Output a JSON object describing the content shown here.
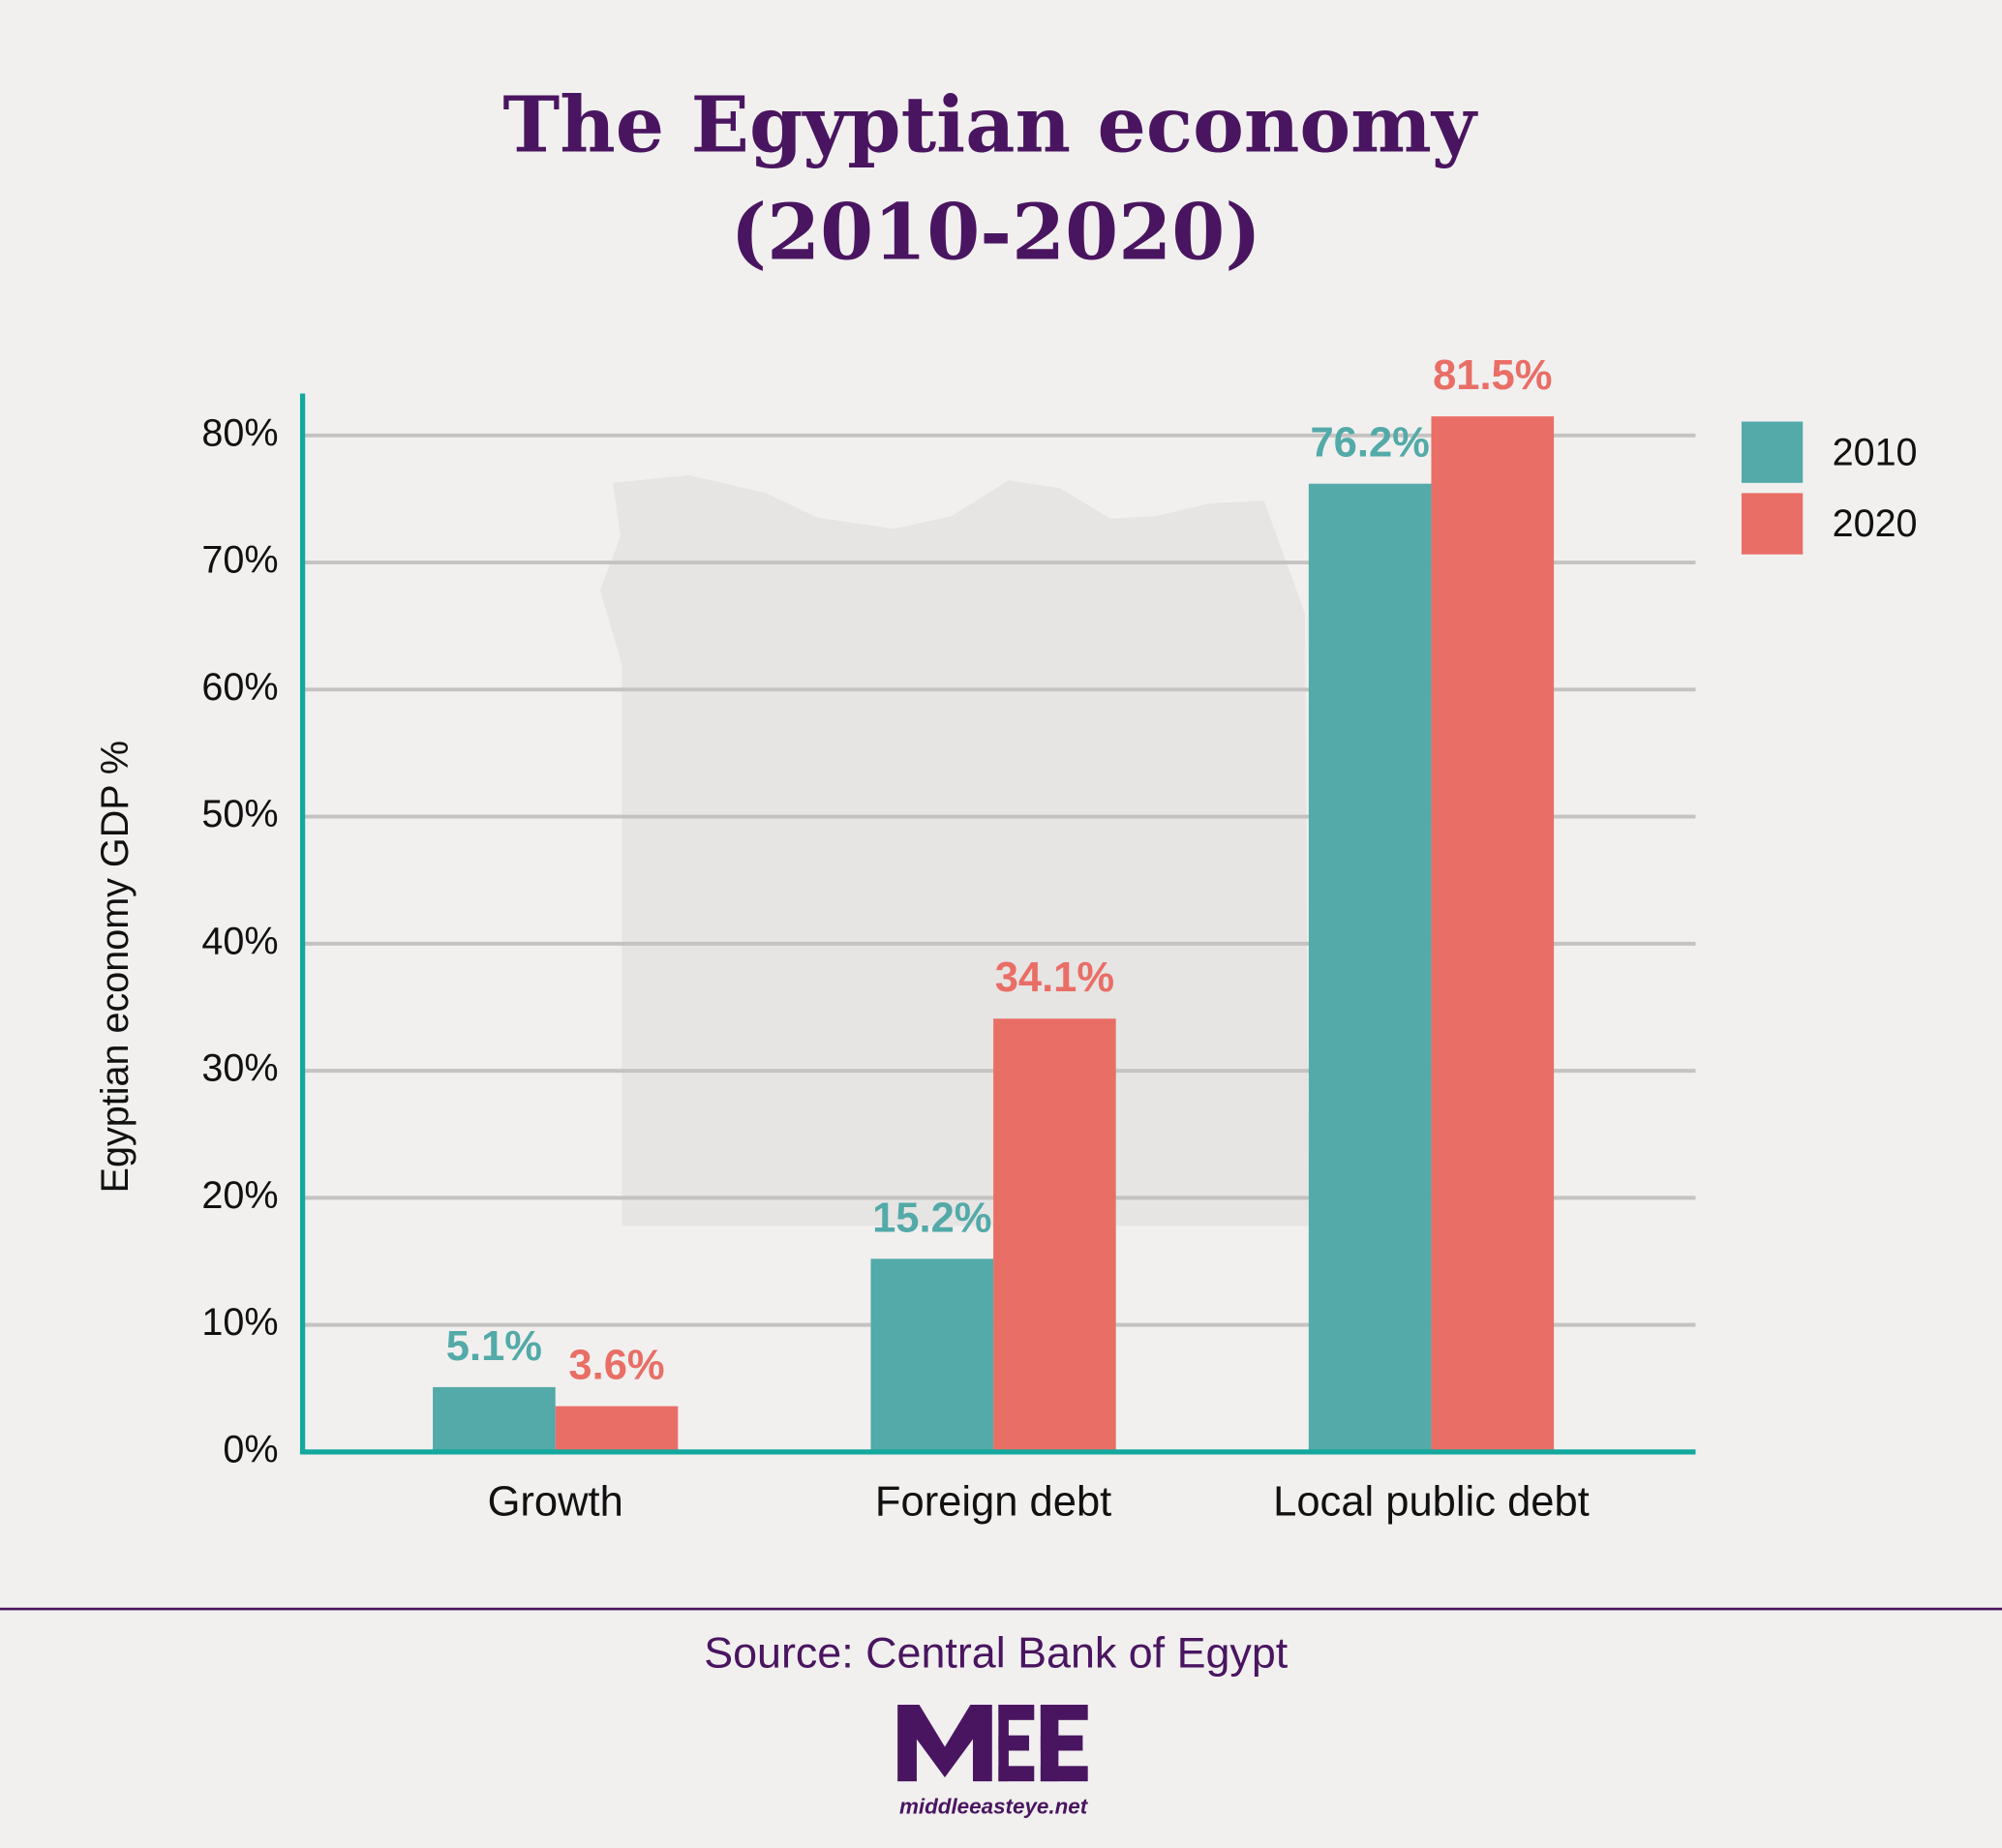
{
  "chart_data": {
    "type": "bar",
    "title": [
      "The Egyptian economy",
      "(2010-2020)"
    ],
    "y_label": "Egyptian economy GDP %",
    "categories": [
      "Growth",
      "Foreign debt",
      "Local public debt"
    ],
    "series": [
      {
        "name": "2010",
        "color": "#53aaa8",
        "values": [
          5.1,
          15.2,
          76.2
        ],
        "value_labels": [
          "5.1%",
          "15.2%",
          "76.2%"
        ]
      },
      {
        "name": "2020",
        "color": "#e96e66",
        "values": [
          3.6,
          34.1,
          81.5
        ],
        "value_labels": [
          "3.6%",
          "34.1%",
          "81.5%"
        ]
      }
    ],
    "ylim": [
      0,
      83.3
    ],
    "yticks": [
      {
        "value": 0,
        "label": "0%"
      },
      {
        "value": 10,
        "label": "10%"
      },
      {
        "value": 20,
        "label": "20%"
      },
      {
        "value": 30,
        "label": "30%"
      },
      {
        "value": 40,
        "label": "40%"
      },
      {
        "value": 50,
        "label": "50%"
      },
      {
        "value": 60,
        "label": "60%"
      },
      {
        "value": 70,
        "label": "70%"
      },
      {
        "value": 80,
        "label": "80%"
      }
    ],
    "grid": true,
    "legend": "right",
    "source": "Source: Central Bank of Egypt",
    "logo_text": "middleeasteye.net"
  }
}
